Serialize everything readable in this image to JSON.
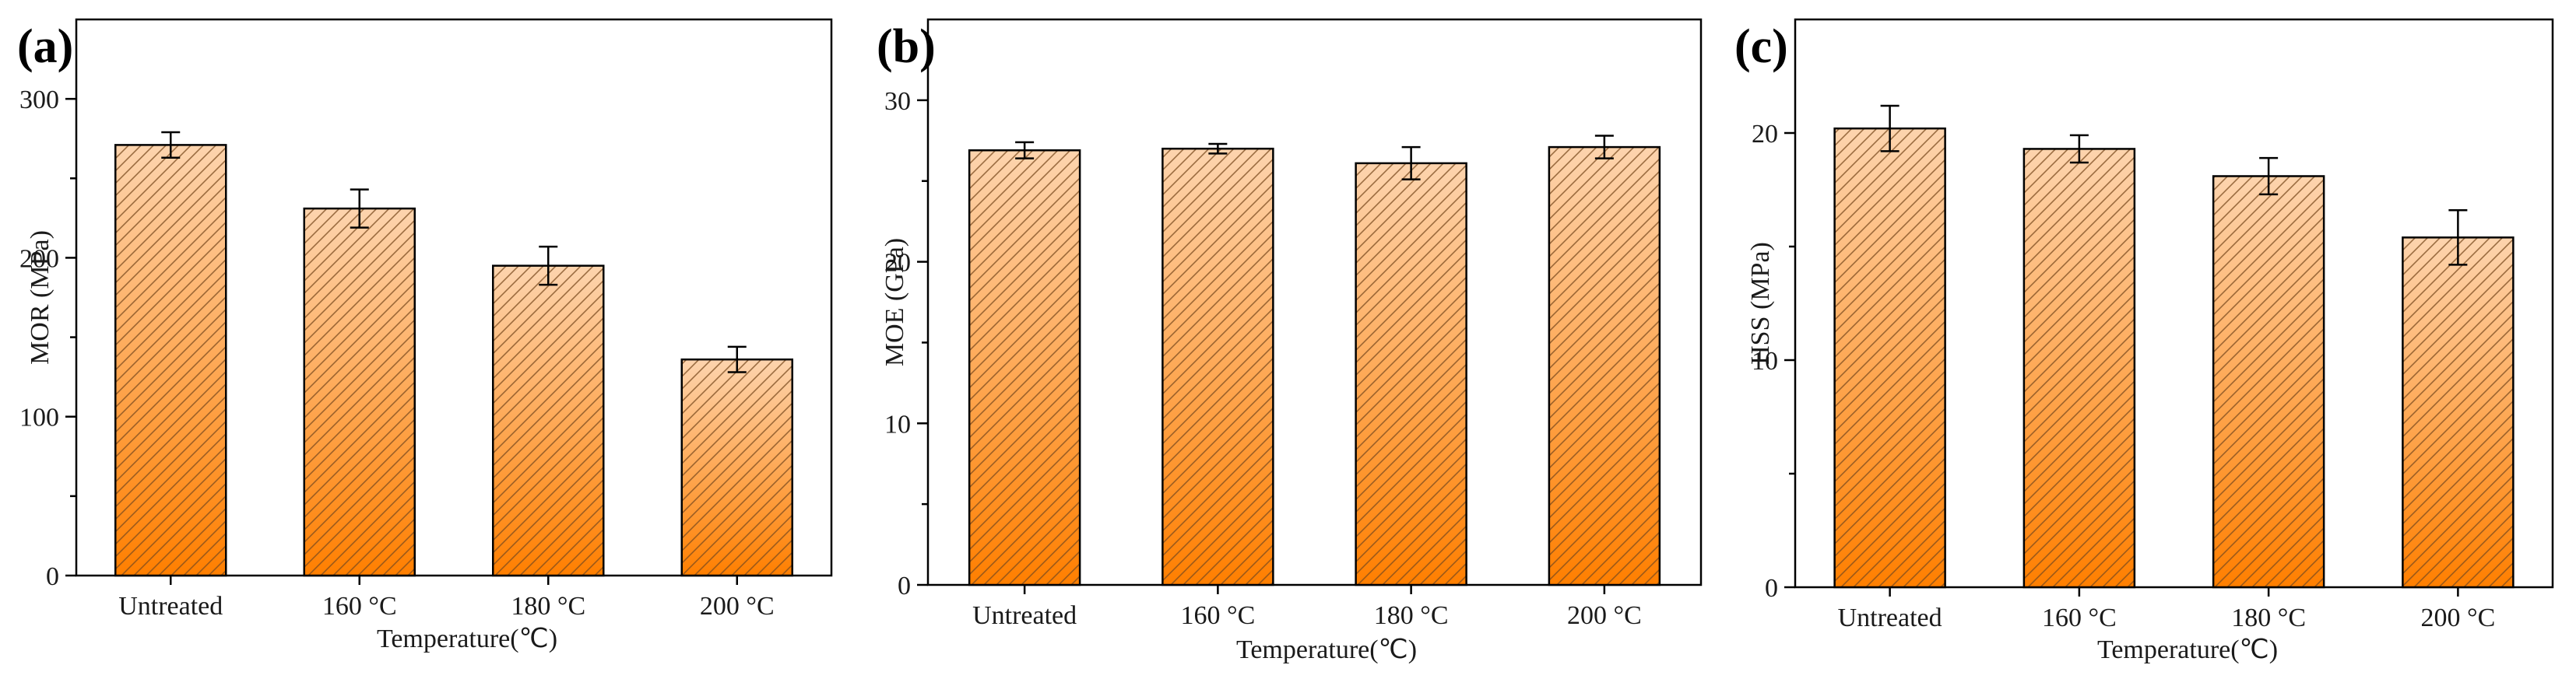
{
  "colors": {
    "bar_top": "#FDD4AE",
    "bar_bottom": "#FF7F00",
    "hatch": "#7A4A1E",
    "axis": "#000000"
  },
  "chart_data": [
    {
      "panel": "(a)",
      "type": "bar",
      "categories": [
        "Untreated",
        "160 °C",
        "180 °C",
        "200 °C"
      ],
      "values": [
        271,
        231,
        195,
        136
      ],
      "errors": [
        8,
        12,
        12,
        8
      ],
      "xlabel": "Temperature(℃)",
      "ylabel": "MOR (MPa)",
      "ylim": [
        0,
        350
      ],
      "yticks": [
        0,
        100,
        200,
        300
      ],
      "ytick_labels": [
        "0",
        "100",
        "200",
        "300"
      ]
    },
    {
      "panel": "(b)",
      "type": "bar",
      "categories": [
        "Untreated",
        "160 °C",
        "180 °C",
        "200 °C"
      ],
      "values": [
        26.9,
        27.0,
        26.1,
        27.1
      ],
      "errors": [
        0.5,
        0.3,
        1.0,
        0.7
      ],
      "xlabel": "Temperature(℃)",
      "ylabel": "MOE (GPa)",
      "ylim": [
        0,
        35
      ],
      "yticks": [
        0,
        10,
        20,
        30
      ],
      "ytick_labels": [
        "0",
        "10",
        "20",
        "30"
      ]
    },
    {
      "panel": "(c)",
      "type": "bar",
      "categories": [
        "Untreated",
        "160 °C",
        "180 °C",
        "200 °C"
      ],
      "values": [
        20.2,
        19.3,
        18.1,
        15.4
      ],
      "errors": [
        1.0,
        0.6,
        0.8,
        1.2
      ],
      "xlabel": "Temperature(℃)",
      "ylabel": "HSS (MPa)",
      "ylim": [
        0,
        25
      ],
      "yticks": [
        0,
        10,
        20
      ],
      "ytick_labels": [
        "0",
        "10",
        "20"
      ]
    }
  ]
}
